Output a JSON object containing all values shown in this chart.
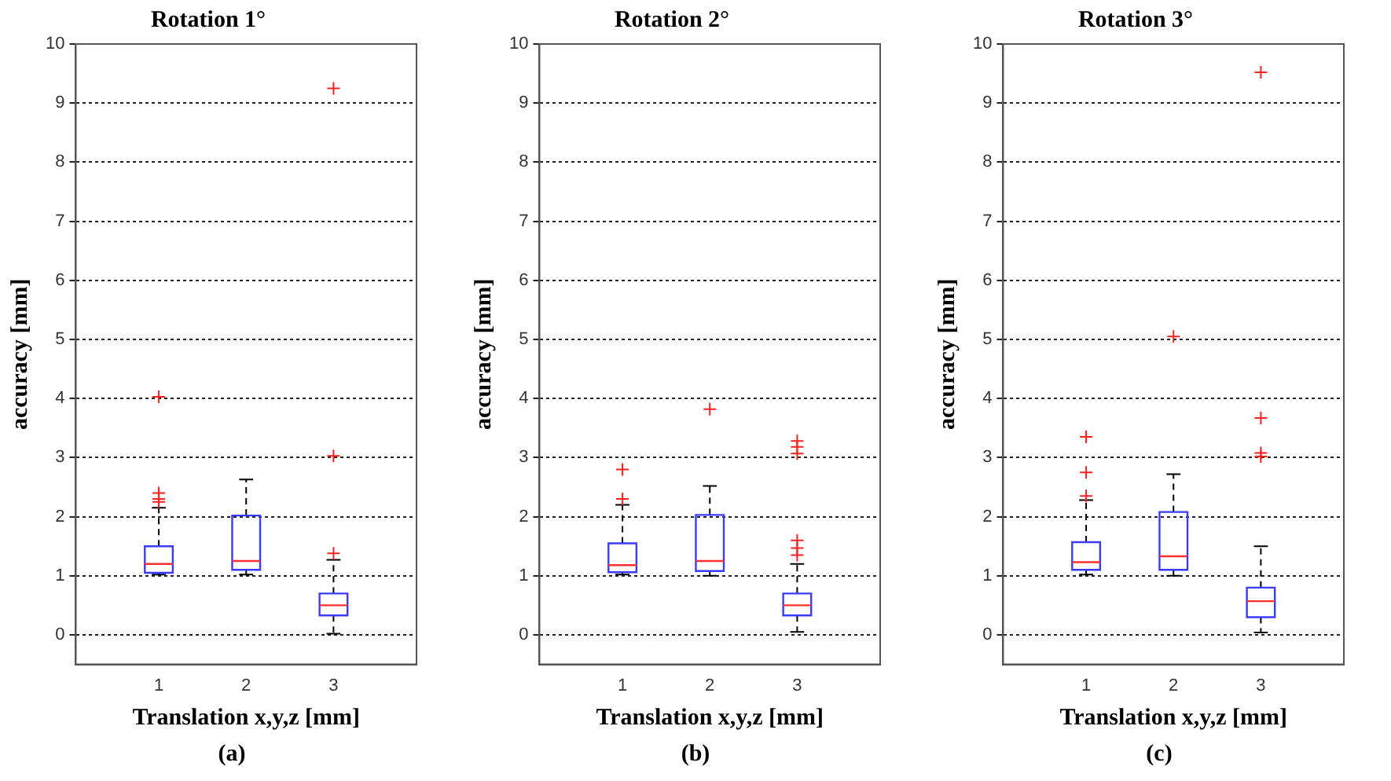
{
  "chart_data": [
    {
      "type": "box",
      "title": "Rotation 1°",
      "xlabel": "Translation x,y,z [mm]",
      "ylabel": "accuracy [mm]",
      "categories": [
        "1",
        "2",
        "3"
      ],
      "ylim": [
        -0.5,
        10
      ],
      "yticks": [
        0,
        1,
        2,
        3,
        4,
        5,
        6,
        7,
        8,
        9,
        10
      ],
      "grid": "y",
      "marker": "cross",
      "annotations": [
        "(a)"
      ],
      "series": [
        {
          "color": "#3b3bff",
          "boxes": [
            {
              "low": 1.02,
              "q1": 1.05,
              "median": 1.2,
              "q3": 1.5,
              "high": 2.15,
              "outliers": [
                2.25,
                2.3,
                2.4,
                4.03
              ]
            },
            {
              "low": 1.02,
              "q1": 1.1,
              "median": 1.25,
              "q3": 2.02,
              "high": 2.63
            },
            {
              "low": 0.02,
              "q1": 0.33,
              "median": 0.5,
              "q3": 0.7,
              "high": 1.27,
              "outliers": [
                1.38,
                3.03,
                9.25
              ]
            }
          ]
        }
      ]
    },
    {
      "type": "box",
      "title": "Rotation 2°",
      "xlabel": "Translation x,y,z [mm]",
      "ylabel": "accuracy [mm]",
      "categories": [
        "1",
        "2",
        "3"
      ],
      "ylim": [
        -0.5,
        10
      ],
      "yticks": [
        0,
        1,
        2,
        3,
        4,
        5,
        6,
        7,
        8,
        9,
        10
      ],
      "grid": "y",
      "marker": "cross",
      "annotations": [
        "(b)"
      ],
      "series": [
        {
          "color": "#3b3bff",
          "boxes": [
            {
              "low": 1.02,
              "q1": 1.06,
              "median": 1.18,
              "q3": 1.55,
              "high": 2.2,
              "outliers": [
                2.3,
                2.8
              ]
            },
            {
              "low": 1.0,
              "q1": 1.08,
              "median": 1.25,
              "q3": 2.03,
              "high": 2.52,
              "outliers": [
                3.82
              ]
            },
            {
              "low": 0.05,
              "q1": 0.33,
              "median": 0.5,
              "q3": 0.7,
              "high": 1.2,
              "outliers": [
                1.35,
                1.47,
                1.6,
                3.07,
                3.18,
                3.28
              ]
            }
          ]
        }
      ]
    },
    {
      "type": "box",
      "title": "Rotation 3°",
      "xlabel": "Translation x,y,z [mm]",
      "ylabel": "accuracy [mm]",
      "categories": [
        "1",
        "2",
        "3"
      ],
      "ylim": [
        -0.5,
        10
      ],
      "yticks": [
        0,
        1,
        2,
        3,
        4,
        5,
        6,
        7,
        8,
        9,
        10
      ],
      "grid": "y",
      "marker": "cross",
      "annotations": [
        "(c)"
      ],
      "series": [
        {
          "color": "#3b3bff",
          "boxes": [
            {
              "low": 1.02,
              "q1": 1.1,
              "median": 1.23,
              "q3": 1.57,
              "high": 2.28,
              "outliers": [
                2.35,
                2.75,
                3.35
              ]
            },
            {
              "low": 1.0,
              "q1": 1.1,
              "median": 1.33,
              "q3": 2.08,
              "high": 2.72,
              "outliers": [
                5.05
              ]
            },
            {
              "low": 0.04,
              "q1": 0.3,
              "median": 0.57,
              "q3": 0.8,
              "high": 1.5,
              "outliers": [
                3.02,
                3.08,
                3.67,
                9.52
              ]
            }
          ]
        }
      ]
    }
  ]
}
